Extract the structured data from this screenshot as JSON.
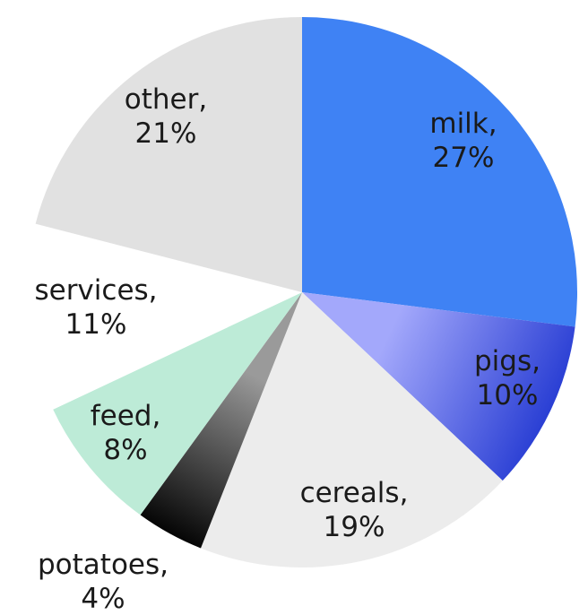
{
  "chart_data": {
    "type": "pie",
    "title": "",
    "start_angle_deg": 0,
    "direction": "clockwise",
    "slices": [
      {
        "category": "milk",
        "value": 27,
        "label_line1": "milk,",
        "label_line2": "27%",
        "color": "#3f82f4",
        "gradient_to": "#3f82f4"
      },
      {
        "category": "pigs",
        "value": 10,
        "label_line1": "pigs,",
        "label_line2": "10%",
        "color": "#a3a8fb",
        "gradient_to": "#2a3fd4"
      },
      {
        "category": "cereals",
        "value": 19,
        "label_line1": "cereals,",
        "label_line2": "19%",
        "color": "#ececec",
        "gradient_to": "#ececec"
      },
      {
        "category": "potatoes",
        "value": 4,
        "label_line1": "potatoes,",
        "label_line2": "4%",
        "color": "#9a9a9a",
        "gradient_to": "#050505"
      },
      {
        "category": "feed",
        "value": 8,
        "label_line1": "feed,",
        "label_line2": "8%",
        "color": "#bdebd7",
        "gradient_to": "#bdebd7"
      },
      {
        "category": "services",
        "value": 11,
        "label_line1": "services,",
        "label_line2": "11%",
        "color": "#ffffff",
        "gradient_to": "#ffffff"
      },
      {
        "category": "other",
        "value": 21,
        "label_line1": "other,",
        "label_line2": "21%",
        "color": "#e1e1e1",
        "gradient_to": "#e1e1e1"
      }
    ]
  }
}
